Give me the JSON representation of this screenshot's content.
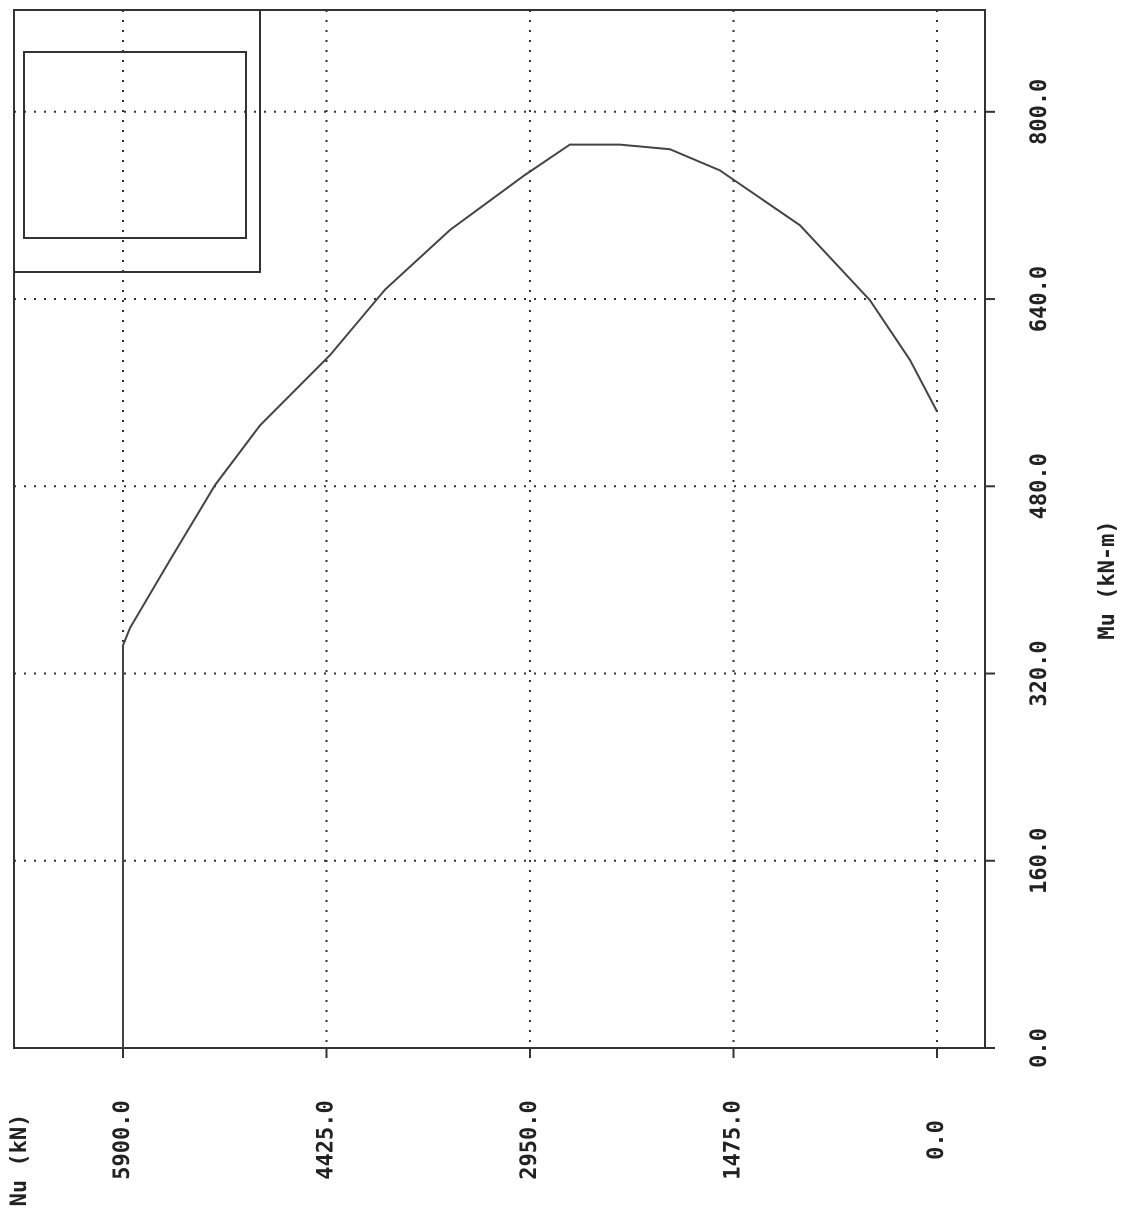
{
  "chart_data": {
    "type": "line",
    "x_label": "Nu (kN)",
    "y_label": "Mu (kN-m)",
    "x": [
      5900,
      5900,
      5849,
      5559,
      5233,
      4907,
      4400,
      4001,
      3530,
      2987,
      2661,
      2299,
      1936,
      1574,
      993,
      486,
      196,
      0
    ],
    "series": [
      {
        "color": "#444444",
        "values": [
          0,
          344,
          359,
          417,
          481,
          532,
          592,
          648,
          699,
          746,
          772,
          772,
          768,
          750,
          703,
          639,
          588,
          544
        ]
      }
    ],
    "xlim": [
      6690,
      -348
    ],
    "ylim": [
      0,
      887
    ],
    "xticks": [
      {
        "value": 5900,
        "label": "5900.0"
      },
      {
        "value": 4425,
        "label": "4425.0"
      },
      {
        "value": 2950,
        "label": "2950.0"
      },
      {
        "value": 1475,
        "label": "1475.0"
      },
      {
        "value": 0,
        "label": "0.0"
      }
    ],
    "yticks": [
      {
        "value": 0,
        "label": "0.0"
      },
      {
        "value": 160,
        "label": "160.0"
      },
      {
        "value": 320,
        "label": "320.0"
      },
      {
        "value": 480,
        "label": "480.0"
      },
      {
        "value": 640,
        "label": "640.0"
      },
      {
        "value": 800,
        "label": "800.0"
      }
    ],
    "grid": true
  }
}
